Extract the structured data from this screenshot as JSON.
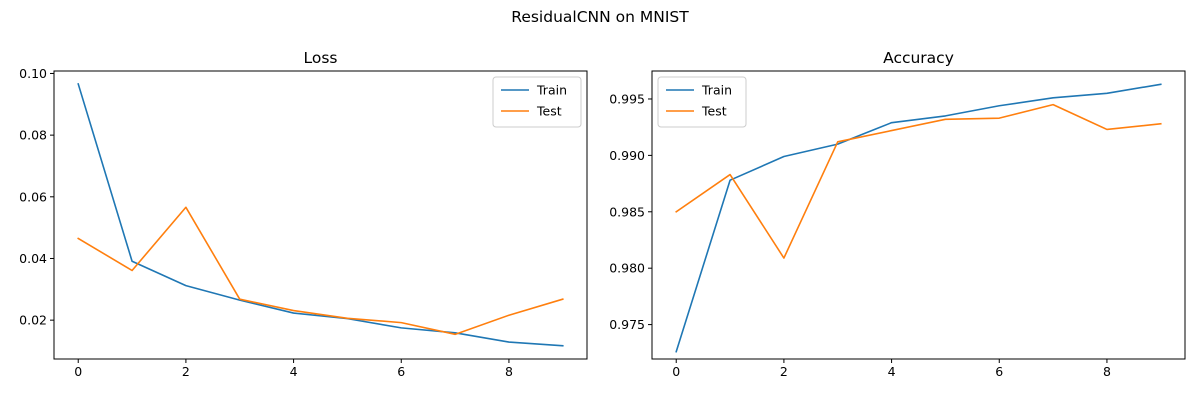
{
  "figure": {
    "suptitle": "ResidualCNN on MNIST"
  },
  "chart_data": [
    {
      "type": "line",
      "title": "Loss",
      "xlabel": "",
      "ylabel": "",
      "x": [
        0,
        1,
        2,
        3,
        4,
        5,
        6,
        7,
        8,
        9
      ],
      "xticks": [
        0,
        2,
        4,
        6,
        8
      ],
      "xlim": [
        -0.45,
        9.45
      ],
      "ylim": [
        0.0074,
        0.1008
      ],
      "yticks": [
        0.02,
        0.04,
        0.06,
        0.08,
        0.1
      ],
      "ytick_labels": [
        "0.02",
        "0.04",
        "0.06",
        "0.08",
        "0.10"
      ],
      "grid": false,
      "legend": "top-right",
      "series": [
        {
          "name": "Train",
          "color": "#1f77b4",
          "values": [
            0.0966,
            0.0391,
            0.0312,
            0.0265,
            0.0223,
            0.0205,
            0.0175,
            0.0159,
            0.0129,
            0.0117
          ]
        },
        {
          "name": "Test",
          "color": "#ff7f0e",
          "values": [
            0.0465,
            0.0361,
            0.0566,
            0.0268,
            0.0231,
            0.0206,
            0.0192,
            0.0154,
            0.0216,
            0.0268
          ]
        }
      ]
    },
    {
      "type": "line",
      "title": "Accuracy",
      "xlabel": "",
      "ylabel": "",
      "x": [
        0,
        1,
        2,
        3,
        4,
        5,
        6,
        7,
        8,
        9
      ],
      "xticks": [
        0,
        2,
        4,
        6,
        8
      ],
      "xlim": [
        -0.45,
        9.45
      ],
      "ylim": [
        0.97195,
        0.99748
      ],
      "yticks": [
        0.975,
        0.98,
        0.985,
        0.99,
        0.995
      ],
      "ytick_labels": [
        "0.975",
        "0.980",
        "0.985",
        "0.990",
        "0.995"
      ],
      "grid": false,
      "legend": "top-left",
      "series": [
        {
          "name": "Train",
          "color": "#1f77b4",
          "values": [
            0.9726,
            0.9878,
            0.9899,
            0.991,
            0.9929,
            0.9935,
            0.9944,
            0.9951,
            0.9955,
            0.9963
          ]
        },
        {
          "name": "Test",
          "color": "#ff7f0e",
          "values": [
            0.985,
            0.9883,
            0.9809,
            0.9912,
            0.9922,
            0.9932,
            0.9933,
            0.9945,
            0.9923,
            0.9928
          ]
        }
      ]
    }
  ]
}
